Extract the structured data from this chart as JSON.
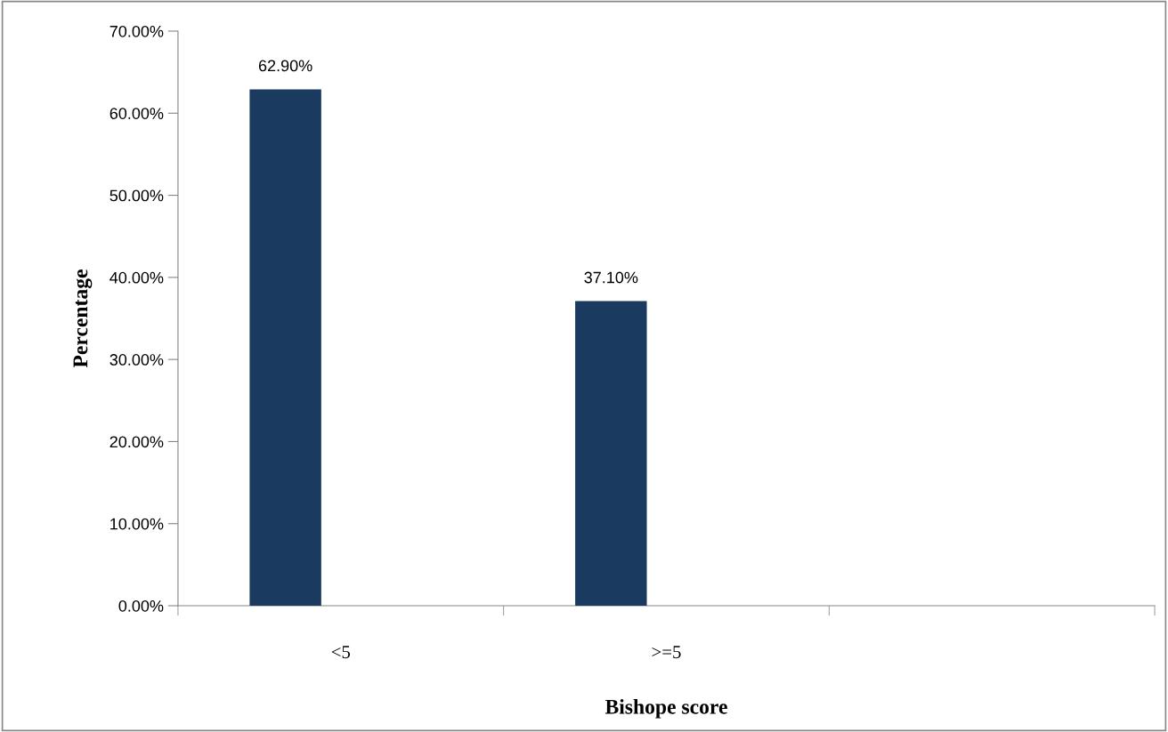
{
  "chart_data": {
    "type": "bar",
    "xlabel": "Bishope score",
    "ylabel": "Percentage",
    "categories": [
      "<5",
      ">=5",
      null
    ],
    "values": [
      62.9,
      37.1,
      null
    ],
    "value_labels": [
      "62.90%",
      "37.10%",
      null
    ],
    "color": "#1b3a5f",
    "ylim": [
      0,
      70
    ],
    "yticks": [
      {
        "value": 0,
        "label": "0.00%"
      },
      {
        "value": 10,
        "label": "10.00%"
      },
      {
        "value": 20,
        "label": "20.00%"
      },
      {
        "value": 30,
        "label": "30.00%"
      },
      {
        "value": 40,
        "label": "40.00%"
      },
      {
        "value": 50,
        "label": "50.00%"
      },
      {
        "value": 60,
        "label": "60.00%"
      },
      {
        "value": 70,
        "label": "70.00%"
      }
    ],
    "grid": false,
    "legend": false
  }
}
